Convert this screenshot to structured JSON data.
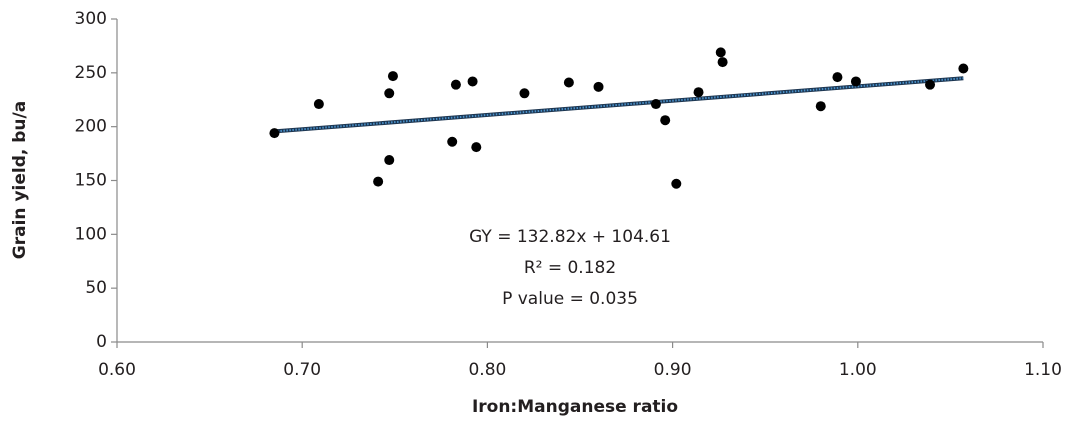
{
  "chart_data": {
    "type": "scatter",
    "x_label": "Iron:Manganese ratio",
    "y_label": "Grain yield, bu/a",
    "series": [
      {
        "color": "#000000",
        "x": [
          0.685,
          0.709,
          0.741,
          0.747,
          0.747,
          0.749,
          0.781,
          0.783,
          0.792,
          0.794,
          0.82,
          0.844,
          0.86,
          0.891,
          0.896,
          0.902,
          0.914,
          0.926,
          0.927,
          0.98,
          0.989,
          0.999,
          1.039,
          1.057
        ],
        "values": [
          194,
          221,
          149,
          169,
          231,
          247,
          186,
          239,
          242,
          181,
          231,
          241,
          237,
          221,
          206,
          147,
          232,
          269,
          260,
          219,
          246,
          242,
          239,
          254
        ]
      }
    ],
    "trendline": {
      "color": "#4a90c8",
      "x": [
        0.685,
        1.057
      ],
      "values": [
        195.59,
        244.99
      ]
    },
    "annotations": [
      "GY = 132.82x + 104.61",
      "R² = 0.182",
      "P value = 0.035"
    ],
    "xlim": [
      0.6,
      1.1
    ],
    "xticks": [
      {
        "value": 0.6,
        "label": "0.60"
      },
      {
        "value": 0.7,
        "label": "0.70"
      },
      {
        "value": 0.8,
        "label": "0.80"
      },
      {
        "value": 0.9,
        "label": "0.90"
      },
      {
        "value": 1.0,
        "label": "1.00"
      },
      {
        "value": 1.1,
        "label": "1.10"
      }
    ],
    "ylim": [
      0,
      300
    ],
    "yticks": [
      0,
      50,
      100,
      150,
      200,
      250,
      300
    ],
    "grid": false
  }
}
